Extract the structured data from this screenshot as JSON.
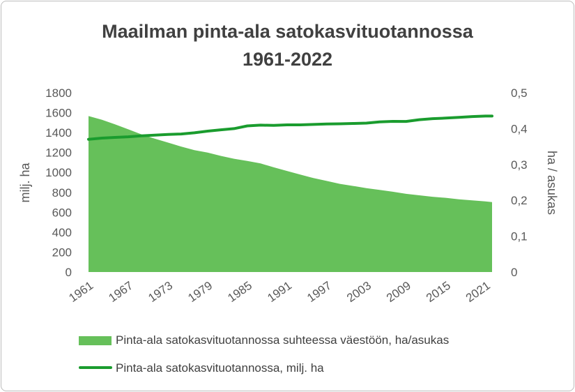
{
  "chart": {
    "title_line_1": "Maailman pinta-ala satokasvituotannossa",
    "title_line_2": "1961-2022",
    "left_axis_title": "milj. ha",
    "right_axis_title": "ha / asukas",
    "legend": [
      "Pinta-ala satokasvituotannossa suhteessa väestöön, ha/asukas",
      "Pinta-ala satokasvituotannossa, milj. ha"
    ]
  },
  "colors": {
    "area_fill": "#66c05a",
    "line_stroke": "#1a9c2e",
    "text": "#595959"
  },
  "chart_data": {
    "type": "area",
    "title": "Maailman pinta-ala satokasvituotannossa 1961-2022",
    "x_tick_labels": [
      "1961",
      "1967",
      "1973",
      "1979",
      "1985",
      "1991",
      "1997",
      "2003",
      "2009",
      "2015",
      "2021"
    ],
    "x_range": [
      1961,
      2022
    ],
    "y_left": {
      "label": "milj. ha",
      "range": [
        0,
        1800
      ],
      "ticks": [
        0,
        200,
        400,
        600,
        800,
        1000,
        1200,
        1400,
        1600,
        1800
      ]
    },
    "y_right": {
      "label": "ha / asukas",
      "range": [
        0,
        0.5
      ],
      "ticks": [
        "0",
        "0,1",
        "0,2",
        "0,3",
        "0,4",
        "0,5"
      ]
    },
    "grid": false,
    "legend_position": "bottom",
    "series": [
      {
        "name": "Pinta-ala satokasvituotannossa suhteessa väestöön, ha/asukas",
        "type": "area",
        "axis": "right",
        "x": [
          1961,
          1963,
          1965,
          1967,
          1969,
          1971,
          1973,
          1975,
          1977,
          1979,
          1981,
          1983,
          1985,
          1987,
          1989,
          1991,
          1993,
          1995,
          1997,
          1999,
          2001,
          2003,
          2005,
          2007,
          2009,
          2011,
          2013,
          2015,
          2017,
          2019,
          2021,
          2022
        ],
        "values": [
          0.435,
          0.425,
          0.412,
          0.398,
          0.384,
          0.372,
          0.361,
          0.35,
          0.34,
          0.333,
          0.324,
          0.316,
          0.31,
          0.303,
          0.292,
          0.282,
          0.272,
          0.262,
          0.254,
          0.246,
          0.24,
          0.234,
          0.229,
          0.224,
          0.218,
          0.214,
          0.21,
          0.207,
          0.203,
          0.2,
          0.197,
          0.195
        ]
      },
      {
        "name": "Pinta-ala satokasvituotannossa, milj. ha",
        "type": "line",
        "axis": "left",
        "x": [
          1961,
          1963,
          1965,
          1967,
          1969,
          1971,
          1973,
          1975,
          1977,
          1979,
          1981,
          1983,
          1985,
          1987,
          1989,
          1991,
          1993,
          1995,
          1997,
          1999,
          2001,
          2003,
          2005,
          2007,
          2009,
          2011,
          2013,
          2015,
          2017,
          2019,
          2021,
          2022
        ],
        "values": [
          1333,
          1345,
          1352,
          1358,
          1368,
          1374,
          1382,
          1386,
          1398,
          1415,
          1428,
          1440,
          1467,
          1475,
          1472,
          1478,
          1478,
          1482,
          1486,
          1488,
          1492,
          1495,
          1508,
          1513,
          1512,
          1530,
          1540,
          1546,
          1553,
          1561,
          1566,
          1566
        ]
      }
    ]
  }
}
